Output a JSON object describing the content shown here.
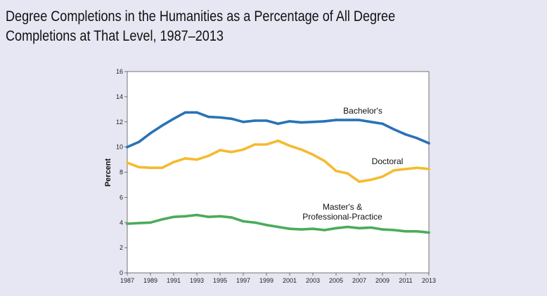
{
  "title_line1": "Degree Completions in the Humanities as a Percentage of All Degree",
  "title_line2": "Completions at That Level, 1987–2013",
  "chart_data": {
    "type": "line",
    "ylabel": "Percent",
    "xlabel": "",
    "ylim": [
      0,
      16
    ],
    "xlim": [
      1987,
      2013
    ],
    "yticks": [
      "0",
      "2",
      "4",
      "6",
      "8",
      "10",
      "12",
      "14",
      "16"
    ],
    "xticks": [
      "1987",
      "1989",
      "1991",
      "1993",
      "1995",
      "1997",
      "1999",
      "2001",
      "2003",
      "2005",
      "2007",
      "2009",
      "2011",
      "2013"
    ],
    "x": [
      1987,
      1988,
      1989,
      1990,
      1991,
      1992,
      1993,
      1994,
      1995,
      1996,
      1997,
      1998,
      1999,
      2000,
      2001,
      2002,
      2003,
      2004,
      2005,
      2006,
      2007,
      2008,
      2009,
      2010,
      2011,
      2012,
      2013
    ],
    "series": [
      {
        "name": "Bachelor's",
        "label_lines": [
          "Bachelor's"
        ],
        "color": "#2a72b6",
        "values": [
          10.0,
          10.4,
          11.1,
          11.7,
          12.25,
          12.75,
          12.75,
          12.4,
          12.35,
          12.25,
          12.0,
          12.1,
          12.1,
          11.85,
          12.05,
          11.95,
          12.0,
          12.05,
          12.15,
          12.15,
          12.15,
          12.0,
          11.85,
          11.4,
          11.0,
          10.7,
          10.3
        ]
      },
      {
        "name": "Doctoral",
        "label_lines": [
          "Doctoral"
        ],
        "color": "#f4bb2e",
        "values": [
          8.75,
          8.4,
          8.35,
          8.35,
          8.8,
          9.1,
          9.0,
          9.3,
          9.75,
          9.6,
          9.8,
          10.2,
          10.2,
          10.5,
          10.1,
          9.8,
          9.4,
          8.9,
          8.1,
          7.9,
          7.25,
          7.4,
          7.65,
          8.15,
          8.25,
          8.35,
          8.25
        ]
      },
      {
        "name": "Master's & Professional-Practice",
        "label_lines": [
          "Master's &",
          "Professional-Practice"
        ],
        "color": "#4aac5a",
        "values": [
          3.9,
          3.95,
          4.0,
          4.25,
          4.45,
          4.5,
          4.6,
          4.45,
          4.5,
          4.4,
          4.1,
          4.0,
          3.8,
          3.65,
          3.5,
          3.45,
          3.5,
          3.4,
          3.55,
          3.65,
          3.55,
          3.6,
          3.45,
          3.4,
          3.3,
          3.3,
          3.2
        ]
      }
    ]
  }
}
